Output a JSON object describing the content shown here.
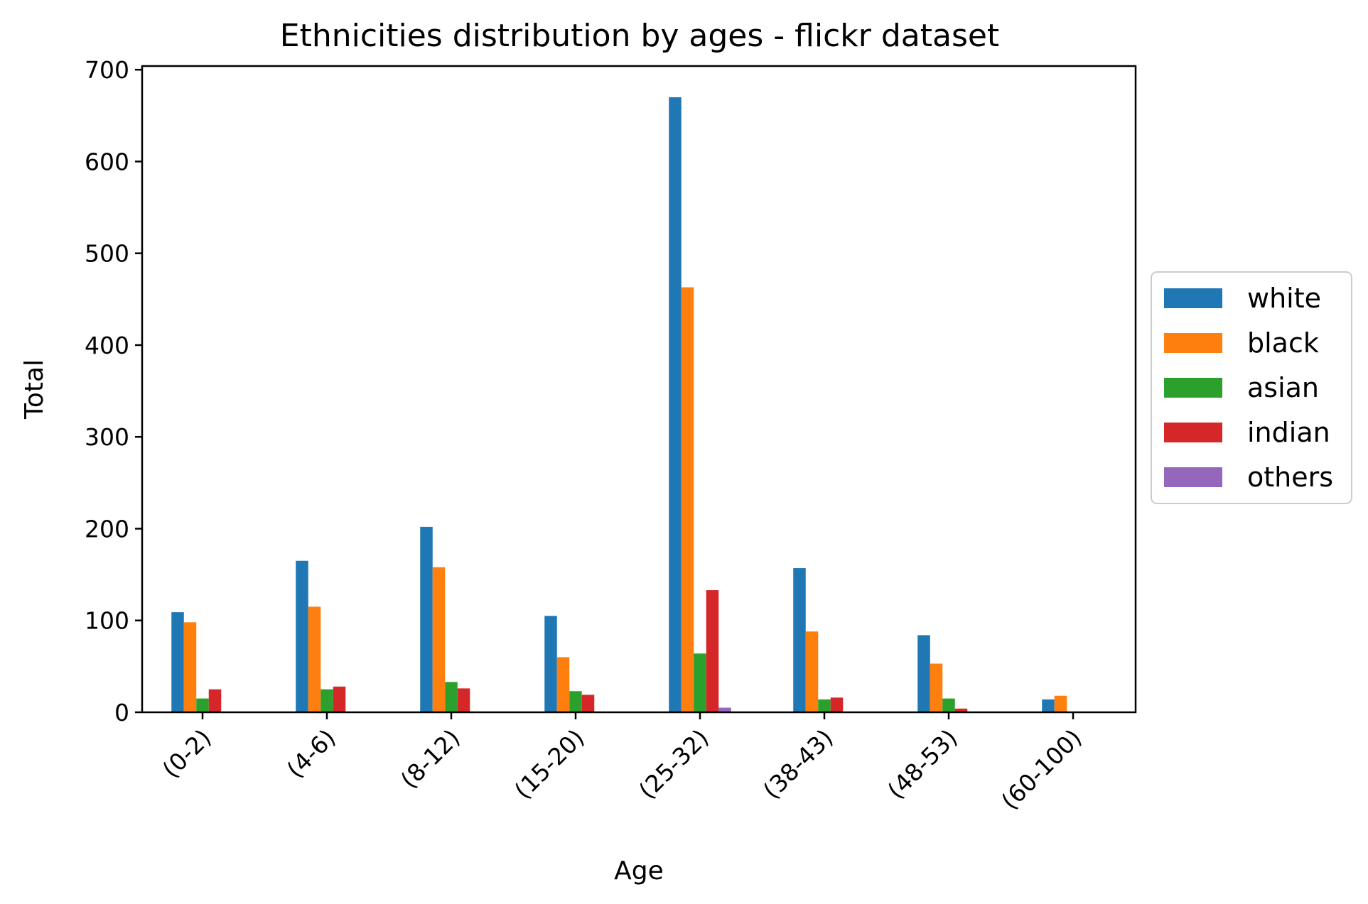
{
  "chart_data": {
    "type": "bar",
    "title": "Ethnicities distribution by ages - flickr dataset",
    "xlabel": "Age",
    "ylabel": "Total",
    "categories": [
      "(0-2)",
      "(4-6)",
      "(8-12)",
      "(15-20)",
      "(25-32)",
      "(38-43)",
      "(48-53)",
      "(60-100)"
    ],
    "series": [
      {
        "name": "white",
        "color": "#1f77b4",
        "values": [
          109,
          165,
          202,
          105,
          670,
          157,
          84,
          14
        ]
      },
      {
        "name": "black",
        "color": "#ff7f0e",
        "values": [
          98,
          115,
          158,
          60,
          463,
          88,
          53,
          18
        ]
      },
      {
        "name": "asian",
        "color": "#2ca02c",
        "values": [
          15,
          25,
          33,
          23,
          64,
          14,
          15,
          0
        ]
      },
      {
        "name": "indian",
        "color": "#d62728",
        "values": [
          25,
          28,
          26,
          19,
          133,
          16,
          4,
          0
        ]
      },
      {
        "name": "others",
        "color": "#9467bd",
        "values": [
          0,
          0,
          0,
          0,
          5,
          0,
          0,
          0
        ]
      }
    ],
    "ylim": [
      0,
      704
    ],
    "yticks": [
      0,
      100,
      200,
      300,
      400,
      500,
      600,
      700
    ],
    "grid": false,
    "legend_position": "center-right outside"
  }
}
